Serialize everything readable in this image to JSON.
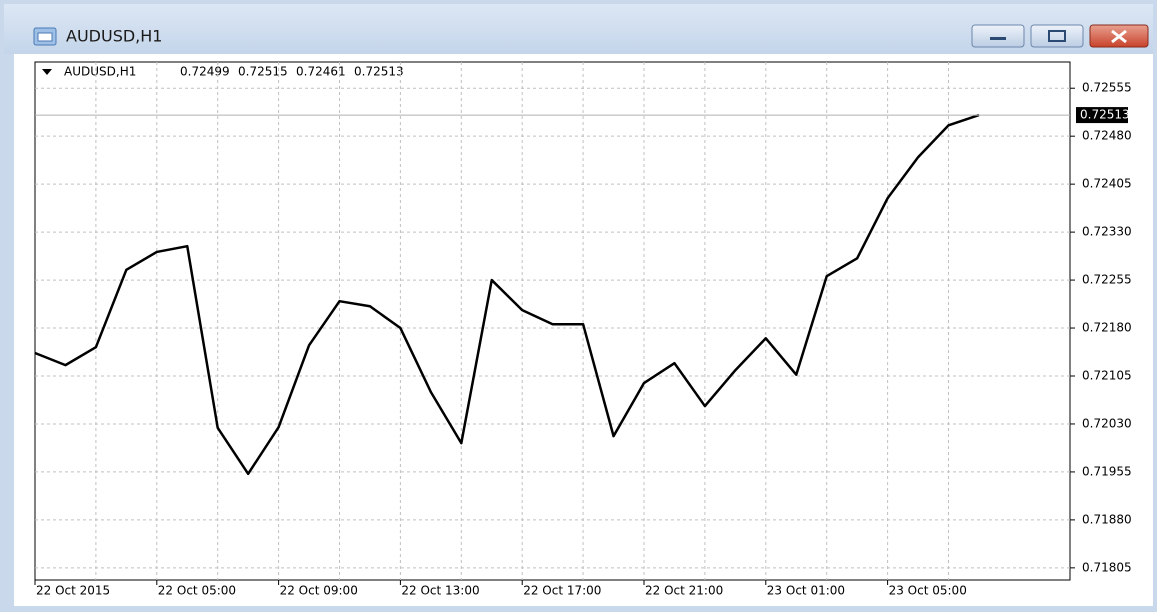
{
  "window": {
    "title": "AUDUSD,H1"
  },
  "chart_data": {
    "type": "line",
    "ohlc": [
      0.72499,
      0.72515,
      0.72461,
      0.72513
    ],
    "categories": [
      "22 Oct 2015",
      null,
      null,
      null,
      "22 Oct 05:00",
      null,
      null,
      null,
      "22 Oct 09:00",
      null,
      null,
      null,
      "22 Oct 13:00",
      null,
      null,
      null,
      "22 Oct 17:00",
      null,
      null,
      null,
      "22 Oct 21:00",
      null,
      null,
      null,
      "23 Oct 01:00",
      null,
      null,
      null,
      "23 Oct 05:00",
      null,
      null,
      null
    ],
    "series": [
      {
        "name": "AUDUSD,H1",
        "color": "#000000",
        "values": [
          0.72141,
          0.72122,
          0.7215,
          0.72271,
          0.72299,
          0.72308,
          0.72024,
          0.71952,
          0.72025,
          0.72153,
          0.72222,
          0.72214,
          0.7218,
          0.7208,
          0.72,
          0.72255,
          0.72208,
          0.72186,
          0.72186,
          0.72011,
          0.72094,
          0.72125,
          0.72058,
          0.72114,
          0.72164,
          0.72107,
          0.72261,
          0.72289,
          0.72383,
          0.72447,
          0.72497,
          0.72513
        ]
      }
    ],
    "ylim": [
      0.71786,
      0.72596
    ],
    "yticks": [
      0.72555,
      {
        "value": 0.7248,
        "label": "0.72480"
      },
      0.72405,
      {
        "value": 0.7233,
        "label": "0.72330"
      },
      0.72255,
      {
        "value": 0.7218,
        "label": "0.72180"
      },
      0.72105,
      {
        "value": 0.7203,
        "label": "0.72030"
      },
      0.71955,
      {
        "value": 0.7188,
        "label": "0.71880"
      },
      0.71805
    ],
    "grid": true
  }
}
